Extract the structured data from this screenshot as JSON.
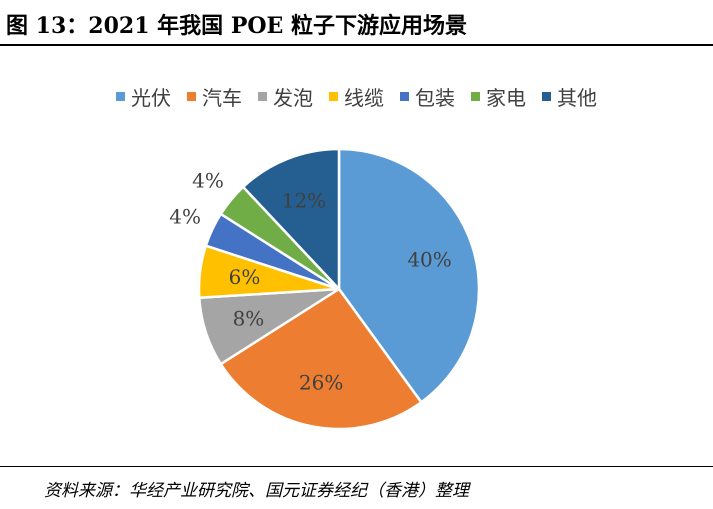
{
  "figure_title": "图 13：2021 年我国 POE 粒子下游应用场景",
  "source_note": "资料来源：华经产业研究院、国元证券经纪（香港）整理",
  "chart_data": {
    "type": "pie",
    "categories": [
      "光伏",
      "汽车",
      "发泡",
      "线缆",
      "包装",
      "家电",
      "其他"
    ],
    "values": [
      40,
      26,
      8,
      6,
      4,
      4,
      12
    ],
    "labels": [
      "40%",
      "26%",
      "8%",
      "6%",
      "4%",
      "4%",
      "12%"
    ],
    "colors": [
      "#5B9BD5",
      "#ED7D31",
      "#A5A5A5",
      "#FFC000",
      "#4472C4",
      "#70AD47",
      "#255E91"
    ],
    "legend_position": "top"
  }
}
